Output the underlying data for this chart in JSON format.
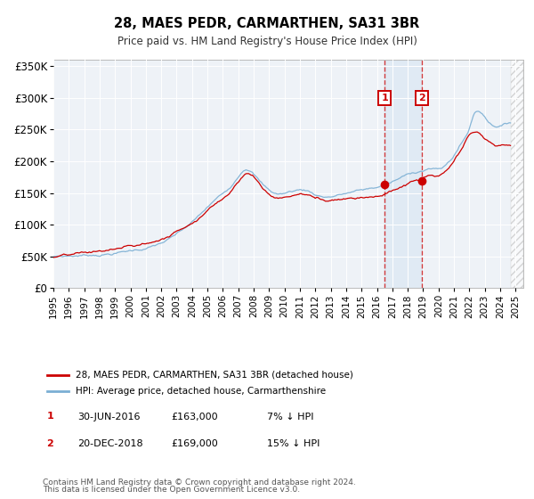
{
  "title": "28, MAES PEDR, CARMARTHEN, SA31 3BR",
  "subtitle": "Price paid vs. HM Land Registry's House Price Index (HPI)",
  "ylabel_ticks": [
    "£0",
    "£50K",
    "£100K",
    "£150K",
    "£200K",
    "£250K",
    "£300K",
    "£350K"
  ],
  "ytick_vals": [
    0,
    50000,
    100000,
    150000,
    200000,
    250000,
    300000,
    350000
  ],
  "ylim": [
    0,
    360000
  ],
  "transaction1_year": 2016.5,
  "transaction1_price": 163000,
  "transaction1_label": "1",
  "transaction1_date": "30-JUN-2016",
  "transaction1_pct": "7% ↓ HPI",
  "transaction2_year": 2018.917,
  "transaction2_price": 169000,
  "transaction2_label": "2",
  "transaction2_date": "20-DEC-2018",
  "transaction2_pct": "15% ↓ HPI",
  "legend1": "28, MAES PEDR, CARMARTHEN, SA31 3BR (detached house)",
  "legend2": "HPI: Average price, detached house, Carmarthenshire",
  "footer1": "Contains HM Land Registry data © Crown copyright and database right 2024.",
  "footer2": "This data is licensed under the Open Government Licence v3.0.",
  "red_color": "#cc0000",
  "blue_color": "#7bafd4",
  "bg_color": "#eef2f7",
  "shade_color": "#c8ddf0",
  "xlim_start": 1995,
  "xlim_end": 2025.5
}
